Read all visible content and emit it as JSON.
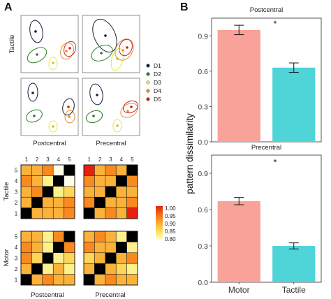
{
  "panel_a": {
    "label": "A",
    "row_labels": [
      "Tactile",
      "Motor"
    ],
    "mds_col_labels": [
      "Postcentral",
      "Precentral"
    ],
    "legend": [
      {
        "label": "D1",
        "color": "#1a1a3a"
      },
      {
        "label": "D2",
        "color": "#2e7d2e"
      },
      {
        "label": "D3",
        "color": "#e8e84a"
      },
      {
        "label": "D4",
        "color": "#f08a2a"
      },
      {
        "label": "D5",
        "color": "#d0201c"
      }
    ],
    "matrix_labels": [
      "1",
      "2",
      "3",
      "4",
      "5"
    ],
    "matrix_row_labels": [
      "5",
      "4",
      "3",
      "2",
      "1"
    ],
    "colorbar_ticks": [
      "1.00",
      "0.95",
      "0.90",
      "0.85",
      "0.80"
    ],
    "matrix_col_labels": [
      "Postcentral",
      "Precentral"
    ]
  },
  "panel_b": {
    "label": "B",
    "ylabel": "pattern dissimilarity",
    "yticks": [
      "0.9",
      "0.6",
      "0.3",
      "0.0"
    ],
    "categories": [
      "Motor",
      "Tactile"
    ],
    "significance": "*",
    "colors": {
      "motor": "#f8a29a",
      "tactile": "#4fd5d8"
    }
  },
  "chart_data": [
    {
      "type": "bar",
      "title": "Postcentral",
      "categories": [
        "Motor",
        "Tactile"
      ],
      "values": [
        0.95,
        0.63
      ],
      "error": [
        0.04,
        0.04
      ],
      "ylabel": "pattern dissimilarity",
      "ylim": [
        0,
        1.05
      ]
    },
    {
      "type": "bar",
      "title": "Precentral",
      "categories": [
        "Motor",
        "Tactile"
      ],
      "values": [
        0.67,
        0.3
      ],
      "error": [
        0.03,
        0.025
      ],
      "ylabel": "pattern dissimilarity",
      "ylim": [
        0,
        1.05
      ]
    }
  ]
}
